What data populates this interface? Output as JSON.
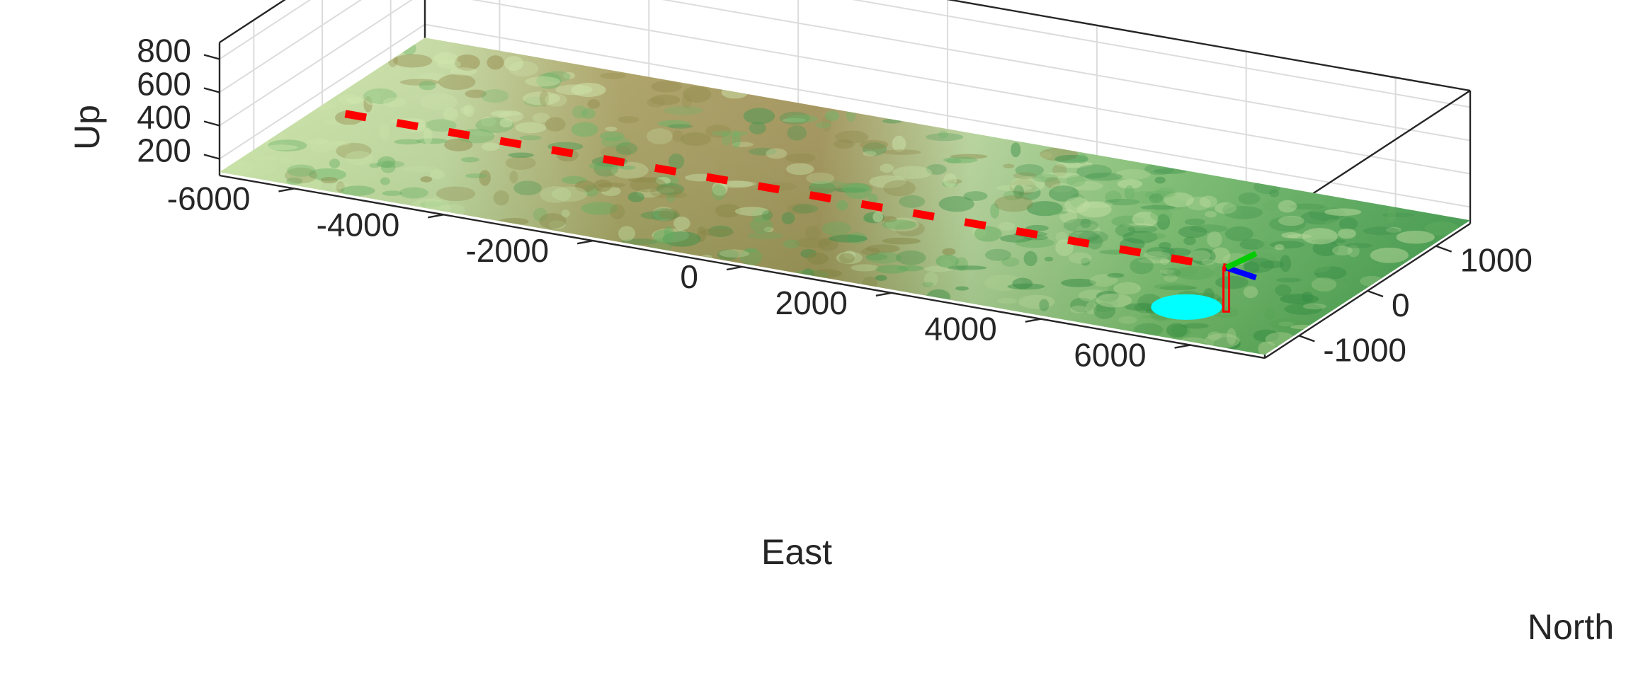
{
  "colors": {
    "background": "#ffffff",
    "axis": "#262626",
    "grid": "#dcdcdc",
    "flight_path": "#ff0000",
    "aircraft_axis_x": "#00cc00",
    "aircraft_axis_y": "#0000ff",
    "aircraft_axis_z": "#ff0000",
    "ground_target": "#00ffff",
    "terrain_light": "#cfe8a8",
    "terrain_green": "#5fae5a",
    "terrain_dark": "#2e8b3e",
    "terrain_brown": "#8a7f3a"
  },
  "chart_data": {
    "type": "3d-line-over-surface",
    "title": "",
    "grid": true,
    "axes": {
      "east": {
        "label": "East",
        "ticks": [
          -6000,
          -4000,
          -2000,
          0,
          2000,
          4000,
          6000
        ],
        "tick_labels": [
          "-6000",
          "-4000",
          "-2000",
          "0",
          "2000",
          "4000",
          "6000"
        ],
        "range": [
          -7000,
          7000
        ]
      },
      "north": {
        "label": "North",
        "ticks": [
          -1000,
          0,
          1000
        ],
        "tick_labels": [
          "-1000",
          "0",
          "1000"
        ],
        "range": [
          -1500,
          1500
        ]
      },
      "up": {
        "label": "Up",
        "ticks": [
          200,
          400,
          600,
          800
        ],
        "tick_labels": [
          "200",
          "400",
          "600",
          "800"
        ],
        "range": [
          100,
          900
        ]
      }
    },
    "surface": {
      "type": "terrain-imagery",
      "east_range": [
        -7000,
        7000
      ],
      "north_range": [
        -1500,
        1500
      ],
      "elevation": 120
    },
    "series": [
      {
        "style": "dashed",
        "east": [
          -6600,
          5200
        ],
        "north": [
          -100,
          -100
        ],
        "up": [
          125,
          125
        ]
      }
    ],
    "aircraft": {
      "east": 5200,
      "north": -100,
      "up": 125
    },
    "ground_target": {
      "east": 5400,
      "north": -900,
      "up": 120
    }
  }
}
